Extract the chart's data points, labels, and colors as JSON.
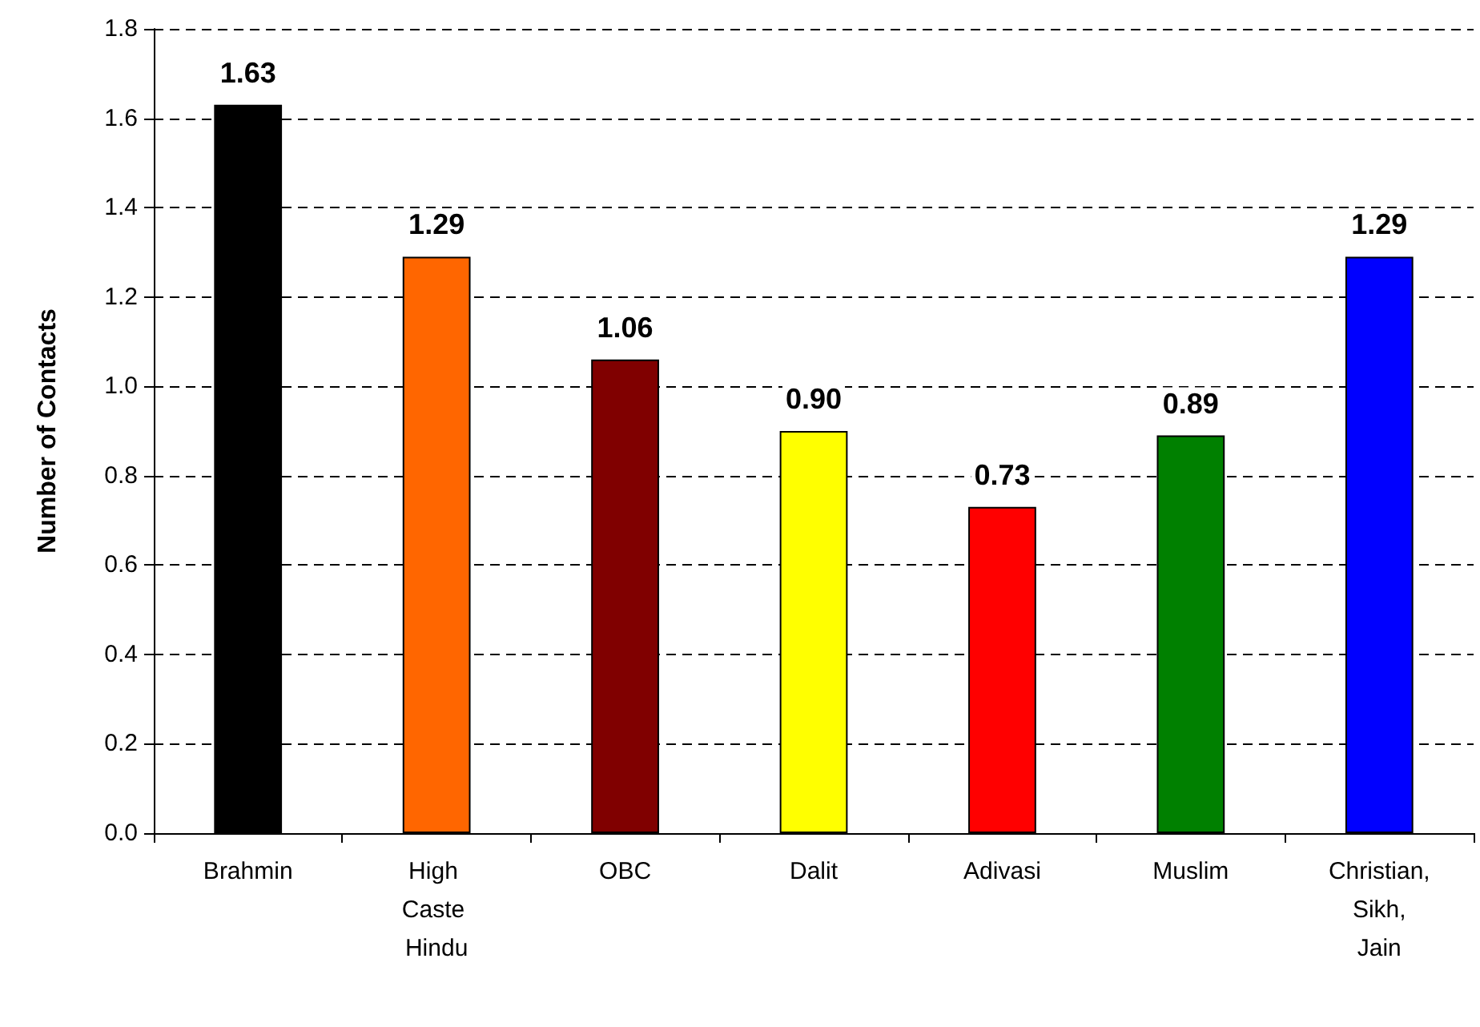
{
  "chart_data": {
    "type": "bar",
    "ylabel": "Number of Contacts",
    "categories": [
      "Brahmin",
      "High Caste Hindu",
      "OBC",
      "Dalit",
      "Adivasi",
      "Muslim",
      "Christian, Sikh, Jain"
    ],
    "values": [
      1.63,
      1.29,
      1.06,
      0.9,
      0.73,
      0.89,
      1.29
    ],
    "colors": [
      "#000000",
      "#ff6600",
      "#800000",
      "#ffff00",
      "#ff0000",
      "#008000",
      "#0000ff"
    ],
    "value_labels": [
      "1.63",
      "1.29",
      "1.06",
      "0.90",
      "0.73",
      "0.89",
      "1.29"
    ],
    "ylim": [
      0,
      1.8
    ],
    "yticks": [
      {
        "value": 0,
        "label": "0.0"
      },
      {
        "value": 0.2,
        "label": "0.2"
      },
      {
        "value": 0.4,
        "label": "0.4"
      },
      {
        "value": 0.6,
        "label": "0.6"
      },
      {
        "value": 0.8,
        "label": "0.8"
      },
      {
        "value": 1,
        "label": "1.0"
      },
      {
        "value": 1.2,
        "label": "1.2"
      },
      {
        "value": 1.4,
        "label": "1.4"
      },
      {
        "value": 1.6,
        "label": "1.6"
      },
      {
        "value": 1.8,
        "label": "1.8"
      }
    ],
    "grid": "y"
  }
}
